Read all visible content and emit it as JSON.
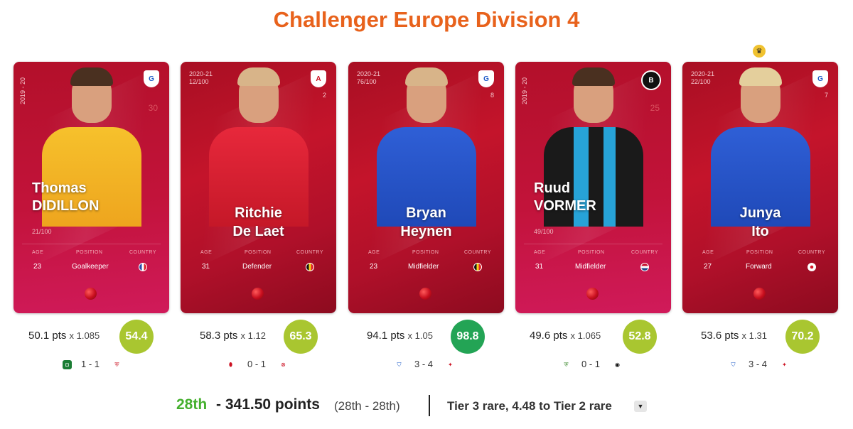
{
  "page": {
    "title": "Challenger Europe Division 4"
  },
  "cards": [
    {
      "season": "2019 - 20",
      "serial": "21/100",
      "shirt_number": "30",
      "first_name": "Thomas",
      "last_name": "DIDILLON",
      "age_label": "AGE",
      "position_label": "POSITION",
      "country_label": "COUNTRY",
      "age": "23",
      "position": "Goalkeeper",
      "country_flag": "flag-france-icon",
      "club_icon": "genk-crest-icon",
      "points": "50.1 pts",
      "multiplier": "x 1.085",
      "score": "54.4",
      "score_color": "#a9c630",
      "game": "1 - 1",
      "home_icon": "cercle-brugge-icon",
      "away_icon": "oostende-icon"
    },
    {
      "season": "2020-21",
      "serial": "12/100",
      "shirt_number": "2",
      "first_name": "Ritchie",
      "last_name": "De Laet",
      "age_label": "AGE",
      "position_label": "POSITION",
      "country_label": "COUNTRY",
      "age": "31",
      "position": "Defender",
      "country_flag": "flag-belgium-icon",
      "club_icon": "antwerp-crest-icon",
      "points": "58.3 pts",
      "multiplier": "x 1.12",
      "score": "65.3",
      "score_color": "#a9c630",
      "game": "0 - 1",
      "home_icon": "antwerp-icon",
      "away_icon": "kortrijk-icon"
    },
    {
      "season": "2020-21",
      "serial": "76/100",
      "shirt_number": "8",
      "first_name": "Bryan",
      "last_name": "Heynen",
      "age_label": "AGE",
      "position_label": "POSITION",
      "country_label": "COUNTRY",
      "age": "23",
      "position": "Midfielder",
      "country_flag": "flag-belgium-icon",
      "club_icon": "genk-crest-icon",
      "points": "94.1 pts",
      "multiplier": "x 1.05",
      "score": "98.8",
      "score_color": "#23a455",
      "game": "3 - 4",
      "home_icon": "genk-icon",
      "away_icon": "zulte-waregem-icon"
    },
    {
      "season": "2019 - 20",
      "serial": "49/100",
      "shirt_number": "25",
      "first_name": "Ruud",
      "last_name": "VORMER",
      "age_label": "AGE",
      "position_label": "POSITION",
      "country_label": "COUNTRY",
      "age": "31",
      "position": "Midfielder",
      "country_flag": "flag-netherlands-icon",
      "club_icon": "club-brugge-crest-icon",
      "points": "49.6 pts",
      "multiplier": "x 1.065",
      "score": "52.8",
      "score_color": "#a9c630",
      "game": "0 - 1",
      "home_icon": "beerschot-icon",
      "away_icon": "club-brugge-icon"
    },
    {
      "season": "2020-21",
      "serial": "22/100",
      "shirt_number": "7",
      "first_name": "Junya",
      "last_name": "Ito",
      "age_label": "AGE",
      "position_label": "POSITION",
      "country_label": "COUNTRY",
      "age": "27",
      "position": "Forward",
      "country_flag": "flag-japan-icon",
      "club_icon": "genk-crest-icon",
      "points": "53.6 pts",
      "multiplier": "x 1.31",
      "score": "70.2",
      "score_color": "#a9c630",
      "game": "3 - 4",
      "home_icon": "genk-icon",
      "away_icon": "zulte-waregem-icon",
      "captain_icon": "crown-icon"
    }
  ],
  "footer": {
    "rank": "28th",
    "separator": "-",
    "points": "341.50 points",
    "range": "(28th - 28th)",
    "tier": "Tier 3 rare, 4.48 to Tier 2 rare",
    "dropdown_icon": "caret-down-icon"
  }
}
